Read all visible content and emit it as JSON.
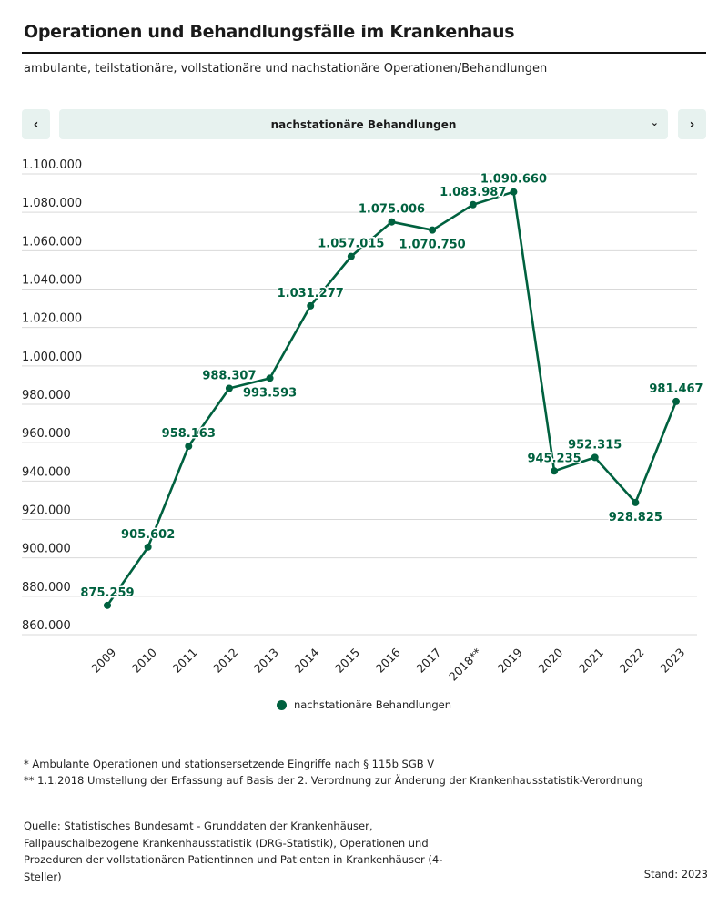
{
  "header": {
    "title": "Operationen und Behandlungsfälle im Krankenhaus",
    "subtitle": "ambulante, teilstationäre, vollstationäre und nachstationäre Operationen/Behandlungen"
  },
  "controls": {
    "prev_icon": "‹",
    "next_icon": "›",
    "selected": "nachstationäre Behandlungen",
    "dropdown_icon": "⌄"
  },
  "colors": {
    "series": "#00613f",
    "grid": "#d9d9d9",
    "control_bg": "#e7f2ef"
  },
  "chart_data": {
    "type": "line",
    "title": "Operationen und Behandlungsfälle im Krankenhaus",
    "xlabel": "",
    "ylabel": "",
    "categories": [
      "2009",
      "2010",
      "2011",
      "2012",
      "2013",
      "2014",
      "2015",
      "2016",
      "2017",
      "2018**",
      "2019",
      "2020",
      "2021",
      "2022",
      "2023"
    ],
    "series": [
      {
        "name": "nachstationäre Behandlungen",
        "values": [
          875259,
          905602,
          958163,
          988307,
          993593,
          1031277,
          1057015,
          1075006,
          1070750,
          1083987,
          1090660,
          945235,
          952315,
          928825,
          981467
        ],
        "labels": [
          "875.259",
          "905.602",
          "958.163",
          "988.307",
          "993.593",
          "1.031.277",
          "1.057.015",
          "1.075.006",
          "1.070.750",
          "1.083.987",
          "1.090.660",
          "945.235",
          "952.315",
          "928.825",
          "981.467"
        ],
        "label_pos": [
          "above",
          "above",
          "above",
          "above",
          "below",
          "above",
          "above",
          "above",
          "below",
          "above",
          "above",
          "above",
          "above",
          "below",
          "above"
        ]
      }
    ],
    "ylim": [
      860000,
      1100000
    ],
    "yticks": [
      860000,
      880000,
      900000,
      920000,
      940000,
      960000,
      980000,
      1000000,
      1020000,
      1040000,
      1060000,
      1080000,
      1100000
    ],
    "ytick_labels": [
      "860.000",
      "880.000",
      "900.000",
      "920.000",
      "940.000",
      "960.000",
      "980.000",
      "1.000.000",
      "1.020.000",
      "1.040.000",
      "1.060.000",
      "1.080.000",
      "1.100.000"
    ],
    "grid": true,
    "legend": "bottom-center"
  },
  "legend": {
    "label": "nachstationäre Behandlungen"
  },
  "footnotes": [
    "* Ambulante Operationen und stationsersetzende Eingriffe nach § 115b SGB V",
    "** 1.1.2018 Umstellung der Erfassung auf Basis der 2. Verordnung zur Änderung der Krankenhausstatistik-Verordnung"
  ],
  "source": "Quelle: Statistisches Bundesamt - Grunddaten der Krankenhäuser, Fallpauschalbezogene Krankenhausstatistik (DRG-Statistik), Operationen und Prozeduren der vollstationären Patientinnen und Patienten in Krankenhäuser (4-Steller)",
  "stand": "Stand: 2023"
}
